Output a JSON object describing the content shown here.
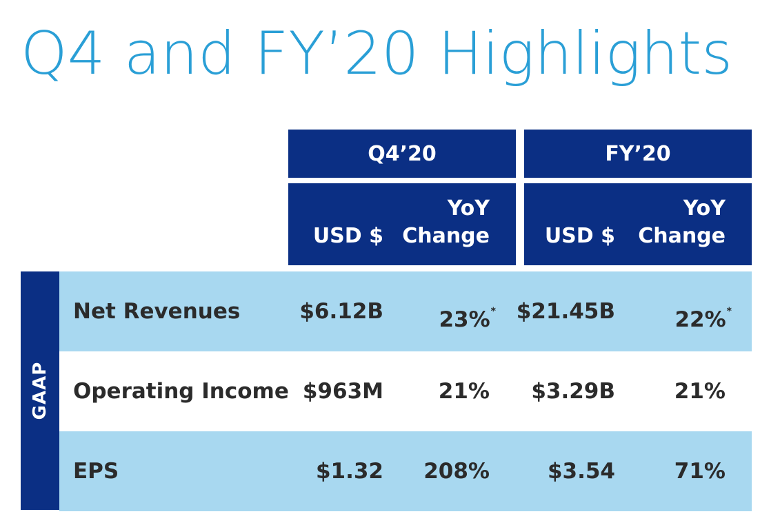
{
  "title": "Q4 and FY’20 Highlights",
  "colors": {
    "title": "#2a9fd6",
    "header_bg": "#0b2f84",
    "row_shade": "#a8d8f0"
  },
  "periods": [
    {
      "label": "Q4’20",
      "usd_label": "USD $",
      "yoy_label_1": "YoY",
      "yoy_label_2": "Change"
    },
    {
      "label": "FY’20",
      "usd_label": "USD $",
      "yoy_label_1": "YoY",
      "yoy_label_2": "Change"
    }
  ],
  "section_label": "GAAP",
  "rows": [
    {
      "label": "Net Revenues",
      "q4_usd": "$6.12B",
      "q4_yoy": "23%",
      "q4_yoy_note": "*",
      "fy_usd": "$21.45B",
      "fy_yoy": "22%",
      "fy_yoy_note": "*"
    },
    {
      "label": "Operating Income",
      "q4_usd": "$963M",
      "q4_yoy": "21%",
      "fy_usd": "$3.29B",
      "fy_yoy": "21%"
    },
    {
      "label": "EPS",
      "q4_usd": "$1.32",
      "q4_yoy": "208%",
      "fy_usd": "$3.54",
      "fy_yoy": "71%"
    }
  ]
}
